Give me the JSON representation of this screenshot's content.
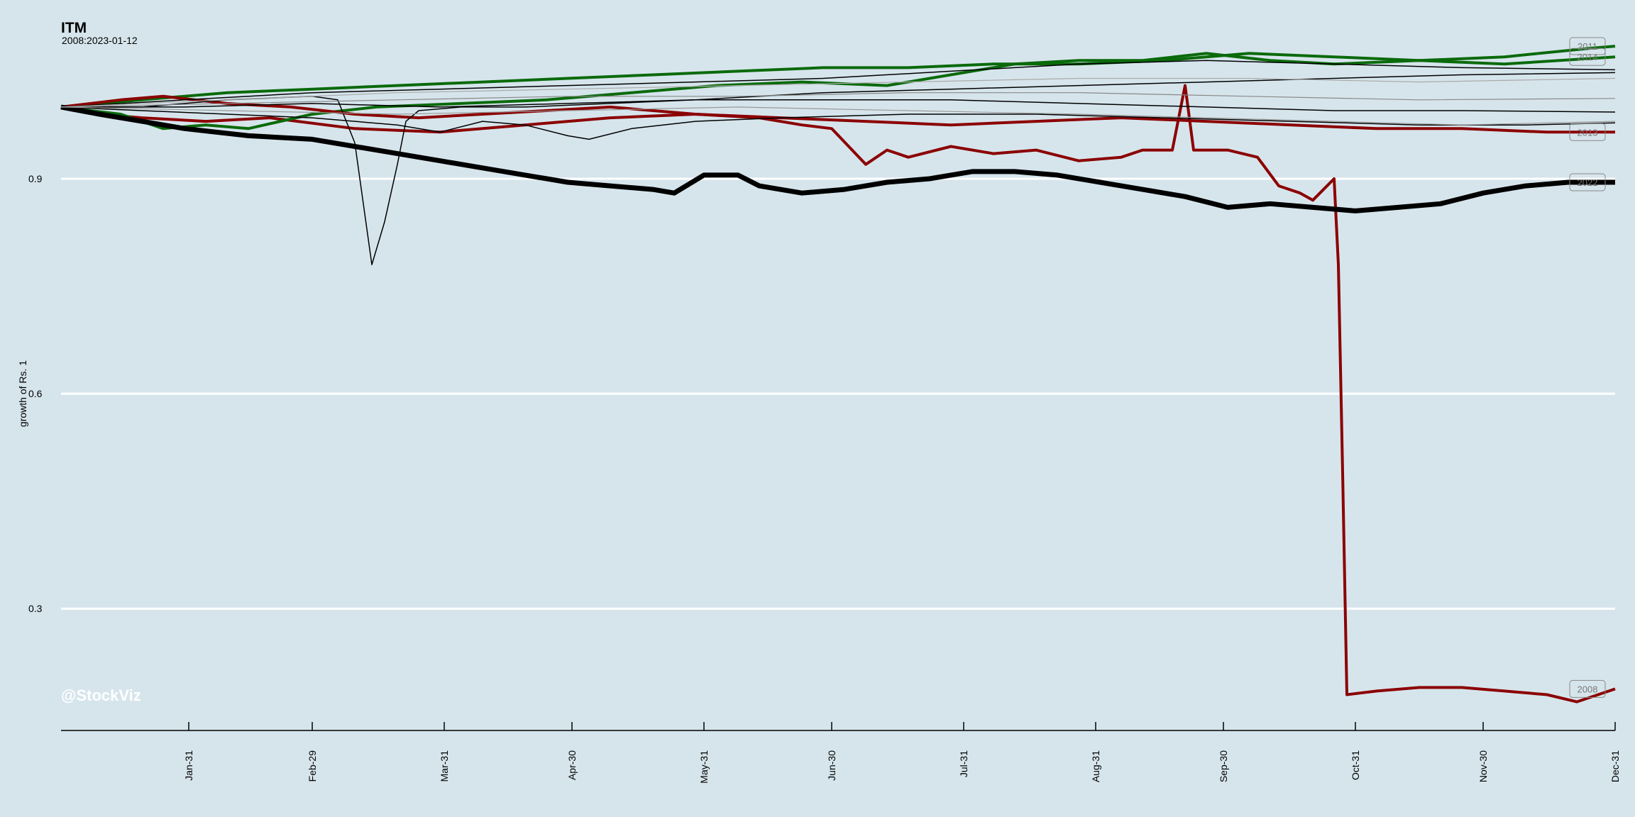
{
  "chart_data": {
    "type": "line",
    "title": "ITM",
    "subtitle": "2008:2023-01-12",
    "ylabel": "growth of Rs. 1",
    "xlabel": "",
    "watermark": "@StockViz",
    "x_ticks": [
      "Jan-31",
      "Feb-29",
      "Mar-31",
      "Apr-30",
      "May-31",
      "Jun-30",
      "Jul-31",
      "Aug-31",
      "Sep-30",
      "Oct-31",
      "Nov-30",
      "Dec-31"
    ],
    "x_tick_day": [
      31,
      60,
      91,
      121,
      152,
      182,
      213,
      244,
      274,
      305,
      335,
      366
    ],
    "x_range_days": [
      1,
      366
    ],
    "y_ticks": [
      0.3,
      0.6,
      0.9
    ],
    "ylim": [
      0.13,
      1.09
    ],
    "grid": true,
    "colors": {
      "background": "#d6e5ec",
      "grid": "#ffffff",
      "green": "#0a6a0a",
      "red": "#8b0000",
      "black": "#000000",
      "gray": "#888888"
    },
    "series": [
      {
        "name": "2008",
        "color": "#8b0000",
        "width": 4,
        "labeled": true,
        "points": [
          [
            1,
            1.0
          ],
          [
            10,
            0.99
          ],
          [
            20,
            0.985
          ],
          [
            35,
            0.98
          ],
          [
            50,
            0.985
          ],
          [
            70,
            0.97
          ],
          [
            90,
            0.965
          ],
          [
            110,
            0.975
          ],
          [
            130,
            0.985
          ],
          [
            150,
            0.99
          ],
          [
            165,
            0.985
          ],
          [
            175,
            0.975
          ],
          [
            182,
            0.97
          ],
          [
            190,
            0.92
          ],
          [
            195,
            0.94
          ],
          [
            200,
            0.93
          ],
          [
            210,
            0.945
          ],
          [
            220,
            0.935
          ],
          [
            230,
            0.94
          ],
          [
            240,
            0.925
          ],
          [
            250,
            0.93
          ],
          [
            255,
            0.94
          ],
          [
            262,
            0.94
          ],
          [
            265,
            1.03
          ],
          [
            267,
            0.94
          ],
          [
            275,
            0.94
          ],
          [
            282,
            0.93
          ],
          [
            287,
            0.89
          ],
          [
            292,
            0.88
          ],
          [
            295,
            0.87
          ],
          [
            300,
            0.9
          ],
          [
            301,
            0.78
          ],
          [
            302,
            0.49
          ],
          [
            303,
            0.18
          ],
          [
            310,
            0.185
          ],
          [
            320,
            0.19
          ],
          [
            330,
            0.19
          ],
          [
            340,
            0.185
          ],
          [
            350,
            0.18
          ],
          [
            357,
            0.17
          ],
          [
            362,
            0.18
          ],
          [
            366,
            0.188
          ]
        ]
      },
      {
        "name": "2011",
        "color": "#0a6a0a",
        "width": 4,
        "labeled": true,
        "points": [
          [
            1,
            1.0
          ],
          [
            20,
            1.01
          ],
          [
            40,
            1.02
          ],
          [
            60,
            1.025
          ],
          [
            80,
            1.03
          ],
          [
            100,
            1.035
          ],
          [
            120,
            1.04
          ],
          [
            140,
            1.045
          ],
          [
            160,
            1.05
          ],
          [
            180,
            1.055
          ],
          [
            200,
            1.055
          ],
          [
            220,
            1.06
          ],
          [
            240,
            1.06
          ],
          [
            260,
            1.065
          ],
          [
            280,
            1.075
          ],
          [
            300,
            1.07
          ],
          [
            320,
            1.065
          ],
          [
            340,
            1.07
          ],
          [
            360,
            1.082
          ],
          [
            366,
            1.085
          ]
        ]
      },
      {
        "name": "2014",
        "color": "#0a6a0a",
        "width": 4,
        "labeled": true,
        "points": [
          [
            1,
            1.0
          ],
          [
            15,
            0.99
          ],
          [
            25,
            0.97
          ],
          [
            35,
            0.975
          ],
          [
            45,
            0.97
          ],
          [
            60,
            0.99
          ],
          [
            75,
            1.0
          ],
          [
            95,
            1.005
          ],
          [
            115,
            1.01
          ],
          [
            135,
            1.02
          ],
          [
            155,
            1.03
          ],
          [
            175,
            1.035
          ],
          [
            195,
            1.03
          ],
          [
            215,
            1.05
          ],
          [
            225,
            1.06
          ],
          [
            240,
            1.065
          ],
          [
            255,
            1.065
          ],
          [
            270,
            1.075
          ],
          [
            285,
            1.065
          ],
          [
            300,
            1.06
          ],
          [
            320,
            1.065
          ],
          [
            340,
            1.06
          ],
          [
            366,
            1.07
          ]
        ]
      },
      {
        "name": "2013",
        "color": "#8b0000",
        "width": 4,
        "labeled": true,
        "points": [
          [
            1,
            1.0
          ],
          [
            15,
            1.01
          ],
          [
            25,
            1.015
          ],
          [
            40,
            1.005
          ],
          [
            55,
            1.0
          ],
          [
            70,
            0.99
          ],
          [
            85,
            0.985
          ],
          [
            100,
            0.99
          ],
          [
            115,
            0.995
          ],
          [
            130,
            1.0
          ],
          [
            150,
            0.99
          ],
          [
            170,
            0.985
          ],
          [
            190,
            0.98
          ],
          [
            210,
            0.975
          ],
          [
            230,
            0.98
          ],
          [
            250,
            0.985
          ],
          [
            270,
            0.98
          ],
          [
            290,
            0.975
          ],
          [
            310,
            0.97
          ],
          [
            330,
            0.97
          ],
          [
            350,
            0.965
          ],
          [
            366,
            0.965
          ]
        ]
      },
      {
        "name": "2022",
        "color": "#000000",
        "width": 7,
        "labeled": true,
        "points": [
          [
            1,
            1.0
          ],
          [
            10,
            0.99
          ],
          [
            20,
            0.98
          ],
          [
            30,
            0.97
          ],
          [
            45,
            0.96
          ],
          [
            60,
            0.955
          ],
          [
            70,
            0.945
          ],
          [
            80,
            0.935
          ],
          [
            90,
            0.925
          ],
          [
            100,
            0.915
          ],
          [
            110,
            0.905
          ],
          [
            120,
            0.895
          ],
          [
            130,
            0.89
          ],
          [
            140,
            0.885
          ],
          [
            145,
            0.88
          ],
          [
            152,
            0.905
          ],
          [
            160,
            0.905
          ],
          [
            165,
            0.89
          ],
          [
            175,
            0.88
          ],
          [
            185,
            0.885
          ],
          [
            195,
            0.895
          ],
          [
            205,
            0.9
          ],
          [
            215,
            0.91
          ],
          [
            225,
            0.91
          ],
          [
            235,
            0.905
          ],
          [
            245,
            0.895
          ],
          [
            255,
            0.885
          ],
          [
            265,
            0.875
          ],
          [
            275,
            0.86
          ],
          [
            285,
            0.865
          ],
          [
            295,
            0.86
          ],
          [
            305,
            0.855
          ],
          [
            315,
            0.86
          ],
          [
            325,
            0.865
          ],
          [
            335,
            0.88
          ],
          [
            345,
            0.89
          ],
          [
            355,
            0.895
          ],
          [
            366,
            0.895
          ]
        ]
      },
      {
        "name": "",
        "color": "#000000",
        "width": 1.5,
        "labeled": false,
        "points": [
          [
            1,
            1.0
          ],
          [
            20,
            1.0
          ],
          [
            40,
            1.01
          ],
          [
            60,
            1.015
          ],
          [
            66,
            1.01
          ],
          [
            70,
            0.95
          ],
          [
            74,
            0.78
          ],
          [
            77,
            0.84
          ],
          [
            80,
            0.92
          ],
          [
            82,
            0.98
          ],
          [
            85,
            0.995
          ],
          [
            95,
            1.0
          ],
          [
            110,
            1.0
          ],
          [
            130,
            1.005
          ],
          [
            150,
            1.01
          ],
          [
            180,
            1.02
          ],
          [
            210,
            1.025
          ],
          [
            240,
            1.03
          ],
          [
            270,
            1.035
          ],
          [
            300,
            1.04
          ],
          [
            330,
            1.045
          ],
          [
            366,
            1.048
          ]
        ]
      },
      {
        "name": "",
        "color": "#000000",
        "width": 1.5,
        "labeled": false,
        "points": [
          [
            1,
            1.0
          ],
          [
            20,
            0.995
          ],
          [
            40,
            0.99
          ],
          [
            60,
            0.985
          ],
          [
            80,
            0.975
          ],
          [
            90,
            0.965
          ],
          [
            100,
            0.98
          ],
          [
            110,
            0.975
          ],
          [
            120,
            0.96
          ],
          [
            125,
            0.955
          ],
          [
            135,
            0.97
          ],
          [
            150,
            0.98
          ],
          [
            170,
            0.985
          ],
          [
            200,
            0.99
          ],
          [
            230,
            0.99
          ],
          [
            260,
            0.985
          ],
          [
            290,
            0.98
          ],
          [
            320,
            0.975
          ],
          [
            345,
            0.975
          ],
          [
            366,
            0.978
          ]
        ]
      },
      {
        "name": "",
        "color": "#000000",
        "width": 1.5,
        "labeled": false,
        "points": [
          [
            1,
            1.0
          ],
          [
            30,
            1.01
          ],
          [
            60,
            1.02
          ],
          [
            90,
            1.025
          ],
          [
            120,
            1.03
          ],
          [
            150,
            1.035
          ],
          [
            180,
            1.04
          ],
          [
            210,
            1.05
          ],
          [
            240,
            1.06
          ],
          [
            270,
            1.065
          ],
          [
            300,
            1.06
          ],
          [
            330,
            1.055
          ],
          [
            366,
            1.052
          ]
        ]
      },
      {
        "name": "",
        "color": "#000000",
        "width": 1.5,
        "labeled": false,
        "points": [
          [
            1,
            1.0
          ],
          [
            30,
            1.0
          ],
          [
            60,
            1.005
          ],
          [
            90,
            1.0
          ],
          [
            120,
            1.005
          ],
          [
            150,
            1.01
          ],
          [
            180,
            1.01
          ],
          [
            210,
            1.01
          ],
          [
            240,
            1.005
          ],
          [
            270,
            1.0
          ],
          [
            300,
            0.995
          ],
          [
            330,
            0.995
          ],
          [
            366,
            0.993
          ]
        ]
      },
      {
        "name": "",
        "color": "#888888",
        "width": 1.2,
        "labeled": false,
        "points": [
          [
            1,
            1.0
          ],
          [
            40,
            1.005
          ],
          [
            80,
            1.01
          ],
          [
            120,
            1.015
          ],
          [
            160,
            1.015
          ],
          [
            200,
            1.02
          ],
          [
            240,
            1.02
          ],
          [
            280,
            1.015
          ],
          [
            320,
            1.01
          ],
          [
            366,
            1.012
          ]
        ]
      },
      {
        "name": "",
        "color": "#999999",
        "width": 1.2,
        "labeled": false,
        "points": [
          [
            1,
            1.0
          ],
          [
            40,
            0.995
          ],
          [
            80,
            0.99
          ],
          [
            120,
            0.995
          ],
          [
            160,
            1.0
          ],
          [
            200,
            0.995
          ],
          [
            240,
            0.99
          ],
          [
            270,
            0.985
          ],
          [
            300,
            0.98
          ],
          [
            330,
            0.975
          ],
          [
            366,
            0.98
          ]
        ]
      },
      {
        "name": "",
        "color": "#aaaaaa",
        "width": 1.2,
        "labeled": false,
        "points": [
          [
            1,
            1.0
          ],
          [
            40,
            1.01
          ],
          [
            80,
            1.02
          ],
          [
            120,
            1.025
          ],
          [
            160,
            1.03
          ],
          [
            200,
            1.035
          ],
          [
            240,
            1.04
          ],
          [
            280,
            1.04
          ],
          [
            320,
            1.035
          ],
          [
            366,
            1.04
          ]
        ]
      }
    ]
  }
}
